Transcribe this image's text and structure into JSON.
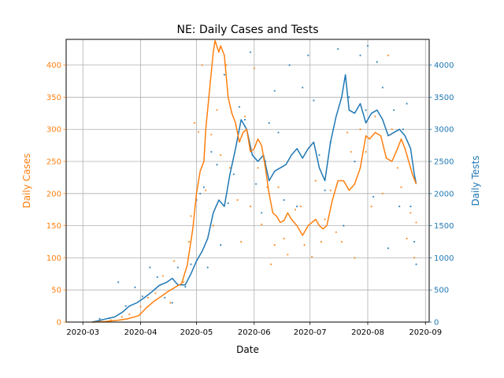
{
  "chart_data": {
    "type": "line",
    "title": "NE: Daily Cases and Tests",
    "xlabel": "Date",
    "ylabel_left": "Daily Cases",
    "ylabel_right": "Daily Tests",
    "x_ticks": [
      "2020-03",
      "2020-04",
      "2020-05",
      "2020-06",
      "2020-07",
      "2020-08",
      "2020-09"
    ],
    "x_tick_dates": [
      "2020-03-01",
      "2020-04-01",
      "2020-05-01",
      "2020-06-01",
      "2020-07-01",
      "2020-08-01",
      "2020-09-01"
    ],
    "x_range": [
      "2020-02-21",
      "2020-09-03"
    ],
    "ylim_left": [
      0,
      440
    ],
    "ylim_right": [
      0,
      4400
    ],
    "yticks_left": [
      0,
      50,
      100,
      150,
      200,
      250,
      300,
      350,
      400
    ],
    "yticks_right": [
      0,
      500,
      1000,
      1500,
      2000,
      2500,
      3000,
      3500,
      4000
    ],
    "grid": true,
    "colors": {
      "cases": "#ff7f0e",
      "tests": "#1f77b4"
    },
    "series": [
      {
        "axis": "left",
        "style": "line",
        "points": [
          [
            "2020-03-06",
            0
          ],
          [
            "2020-03-13",
            1
          ],
          [
            "2020-03-20",
            3
          ],
          [
            "2020-03-25",
            5
          ],
          [
            "2020-03-31",
            10
          ],
          [
            "2020-04-04",
            22
          ],
          [
            "2020-04-08",
            32
          ],
          [
            "2020-04-12",
            40
          ],
          [
            "2020-04-16",
            48
          ],
          [
            "2020-04-20",
            55
          ],
          [
            "2020-04-23",
            60
          ],
          [
            "2020-04-26",
            88
          ],
          [
            "2020-04-29",
            145
          ],
          [
            "2020-05-01",
            200
          ],
          [
            "2020-05-03",
            235
          ],
          [
            "2020-05-05",
            250
          ],
          [
            "2020-05-06",
            300
          ],
          [
            "2020-05-08",
            360
          ],
          [
            "2020-05-09",
            390
          ],
          [
            "2020-05-10",
            420
          ],
          [
            "2020-05-11",
            438
          ],
          [
            "2020-05-13",
            420
          ],
          [
            "2020-05-14",
            430
          ],
          [
            "2020-05-16",
            415
          ],
          [
            "2020-05-18",
            350
          ],
          [
            "2020-05-20",
            325
          ],
          [
            "2020-05-22",
            310
          ],
          [
            "2020-05-24",
            280
          ],
          [
            "2020-05-26",
            295
          ],
          [
            "2020-05-28",
            300
          ],
          [
            "2020-05-30",
            265
          ],
          [
            "2020-06-01",
            270
          ],
          [
            "2020-06-03",
            285
          ],
          [
            "2020-06-05",
            275
          ],
          [
            "2020-06-07",
            240
          ],
          [
            "2020-06-09",
            200
          ],
          [
            "2020-06-11",
            170
          ],
          [
            "2020-06-13",
            165
          ],
          [
            "2020-06-15",
            155
          ],
          [
            "2020-06-17",
            158
          ],
          [
            "2020-06-19",
            170
          ],
          [
            "2020-06-21",
            160
          ],
          [
            "2020-06-24",
            150
          ],
          [
            "2020-06-27",
            135
          ],
          [
            "2020-06-30",
            150
          ],
          [
            "2020-07-02",
            155
          ],
          [
            "2020-07-04",
            160
          ],
          [
            "2020-07-06",
            150
          ],
          [
            "2020-07-08",
            145
          ],
          [
            "2020-07-10",
            150
          ],
          [
            "2020-07-13",
            190
          ],
          [
            "2020-07-16",
            220
          ],
          [
            "2020-07-19",
            220
          ],
          [
            "2020-07-22",
            205
          ],
          [
            "2020-07-25",
            215
          ],
          [
            "2020-07-28",
            240
          ],
          [
            "2020-07-31",
            290
          ],
          [
            "2020-08-02",
            285
          ],
          [
            "2020-08-05",
            295
          ],
          [
            "2020-08-08",
            290
          ],
          [
            "2020-08-11",
            255
          ],
          [
            "2020-08-14",
            250
          ],
          [
            "2020-08-17",
            270
          ],
          [
            "2020-08-19",
            285
          ],
          [
            "2020-08-21",
            270
          ],
          [
            "2020-08-23",
            250
          ],
          [
            "2020-08-25",
            230
          ],
          [
            "2020-08-27",
            215
          ]
        ]
      },
      {
        "axis": "right",
        "style": "line",
        "points": [
          [
            "2020-03-06",
            0
          ],
          [
            "2020-03-12",
            40
          ],
          [
            "2020-03-18",
            80
          ],
          [
            "2020-03-22",
            150
          ],
          [
            "2020-03-26",
            250
          ],
          [
            "2020-03-30",
            300
          ],
          [
            "2020-04-03",
            380
          ],
          [
            "2020-04-07",
            470
          ],
          [
            "2020-04-11",
            570
          ],
          [
            "2020-04-15",
            620
          ],
          [
            "2020-04-18",
            680
          ],
          [
            "2020-04-21",
            580
          ],
          [
            "2020-04-25",
            580
          ],
          [
            "2020-04-28",
            750
          ],
          [
            "2020-05-01",
            950
          ],
          [
            "2020-05-04",
            1100
          ],
          [
            "2020-05-07",
            1300
          ],
          [
            "2020-05-10",
            1700
          ],
          [
            "2020-05-13",
            1900
          ],
          [
            "2020-05-16",
            1800
          ],
          [
            "2020-05-19",
            2300
          ],
          [
            "2020-05-22",
            2700
          ],
          [
            "2020-05-25",
            3150
          ],
          [
            "2020-05-28",
            3000
          ],
          [
            "2020-05-31",
            2600
          ],
          [
            "2020-06-03",
            2500
          ],
          [
            "2020-06-06",
            2600
          ],
          [
            "2020-06-09",
            2200
          ],
          [
            "2020-06-12",
            2350
          ],
          [
            "2020-06-15",
            2400
          ],
          [
            "2020-06-18",
            2450
          ],
          [
            "2020-06-21",
            2600
          ],
          [
            "2020-06-24",
            2700
          ],
          [
            "2020-06-27",
            2550
          ],
          [
            "2020-06-30",
            2700
          ],
          [
            "2020-07-03",
            2800
          ],
          [
            "2020-07-06",
            2400
          ],
          [
            "2020-07-09",
            2200
          ],
          [
            "2020-07-12",
            2800
          ],
          [
            "2020-07-15",
            3200
          ],
          [
            "2020-07-18",
            3500
          ],
          [
            "2020-07-20",
            3850
          ],
          [
            "2020-07-22",
            3300
          ],
          [
            "2020-07-25",
            3250
          ],
          [
            "2020-07-28",
            3400
          ],
          [
            "2020-07-31",
            3100
          ],
          [
            "2020-08-03",
            3250
          ],
          [
            "2020-08-06",
            3300
          ],
          [
            "2020-08-09",
            3150
          ],
          [
            "2020-08-12",
            2900
          ],
          [
            "2020-08-15",
            2950
          ],
          [
            "2020-08-18",
            3000
          ],
          [
            "2020-08-21",
            2900
          ],
          [
            "2020-08-24",
            2700
          ],
          [
            "2020-08-26",
            2300
          ],
          [
            "2020-08-27",
            2150
          ]
        ]
      },
      {
        "axis": "left",
        "style": "scatter",
        "points": [
          [
            "2020-03-10",
            1
          ],
          [
            "2020-03-16",
            3
          ],
          [
            "2020-03-22",
            8
          ],
          [
            "2020-03-26",
            12
          ],
          [
            "2020-04-01",
            24
          ],
          [
            "2020-04-05",
            38
          ],
          [
            "2020-04-09",
            45
          ],
          [
            "2020-04-13",
            72
          ],
          [
            "2020-04-17",
            30
          ],
          [
            "2020-04-19",
            95
          ],
          [
            "2020-04-24",
            62
          ],
          [
            "2020-04-27",
            125
          ],
          [
            "2020-04-28",
            165
          ],
          [
            "2020-04-30",
            310
          ],
          [
            "2020-05-02",
            296
          ],
          [
            "2020-05-04",
            400
          ],
          [
            "2020-05-06",
            205
          ],
          [
            "2020-05-09",
            292
          ],
          [
            "2020-05-10",
            150
          ],
          [
            "2020-05-12",
            330
          ],
          [
            "2020-05-14",
            260
          ],
          [
            "2020-05-17",
            400
          ],
          [
            "2020-05-19",
            240
          ],
          [
            "2020-05-23",
            190
          ],
          [
            "2020-05-25",
            125
          ],
          [
            "2020-05-27",
            320
          ],
          [
            "2020-05-30",
            180
          ],
          [
            "2020-06-01",
            395
          ],
          [
            "2020-06-03",
            240
          ],
          [
            "2020-06-05",
            152
          ],
          [
            "2020-06-08",
            210
          ],
          [
            "2020-06-10",
            90
          ],
          [
            "2020-06-12",
            120
          ],
          [
            "2020-06-14",
            210
          ],
          [
            "2020-06-17",
            130
          ],
          [
            "2020-06-19",
            105
          ],
          [
            "2020-06-23",
            175
          ],
          [
            "2020-06-26",
            180
          ],
          [
            "2020-06-28",
            120
          ],
          [
            "2020-07-02",
            102
          ],
          [
            "2020-07-04",
            220
          ],
          [
            "2020-07-07",
            125
          ],
          [
            "2020-07-09",
            160
          ],
          [
            "2020-07-12",
            205
          ],
          [
            "2020-07-15",
            140
          ],
          [
            "2020-07-18",
            125
          ],
          [
            "2020-07-21",
            295
          ],
          [
            "2020-07-23",
            265
          ],
          [
            "2020-07-25",
            100
          ],
          [
            "2020-07-28",
            300
          ],
          [
            "2020-07-31",
            265
          ],
          [
            "2020-08-03",
            180
          ],
          [
            "2020-08-05",
            320
          ],
          [
            "2020-08-09",
            200
          ],
          [
            "2020-08-12",
            415
          ],
          [
            "2020-08-14",
            300
          ],
          [
            "2020-08-17",
            240
          ],
          [
            "2020-08-19",
            210
          ],
          [
            "2020-08-22",
            130
          ],
          [
            "2020-08-24",
            170
          ],
          [
            "2020-08-26",
            100
          ],
          [
            "2020-08-27",
            155
          ]
        ]
      },
      {
        "axis": "right",
        "style": "scatter",
        "points": [
          [
            "2020-03-10",
            50
          ],
          [
            "2020-03-15",
            60
          ],
          [
            "2020-03-20",
            620
          ],
          [
            "2020-03-24",
            250
          ],
          [
            "2020-03-29",
            540
          ],
          [
            "2020-04-02",
            400
          ],
          [
            "2020-04-06",
            850
          ],
          [
            "2020-04-10",
            700
          ],
          [
            "2020-04-14",
            380
          ],
          [
            "2020-04-18",
            300
          ],
          [
            "2020-04-21",
            850
          ],
          [
            "2020-04-25",
            550
          ],
          [
            "2020-04-28",
            900
          ],
          [
            "2020-05-01",
            1900
          ],
          [
            "2020-05-03",
            2000
          ],
          [
            "2020-05-05",
            2100
          ],
          [
            "2020-05-07",
            850
          ],
          [
            "2020-05-09",
            2650
          ],
          [
            "2020-05-12",
            2450
          ],
          [
            "2020-05-14",
            1200
          ],
          [
            "2020-05-16",
            3850
          ],
          [
            "2020-05-18",
            1850
          ],
          [
            "2020-05-21",
            2300
          ],
          [
            "2020-05-24",
            3350
          ],
          [
            "2020-05-27",
            3150
          ],
          [
            "2020-05-30",
            4200
          ],
          [
            "2020-06-02",
            2150
          ],
          [
            "2020-06-05",
            1700
          ],
          [
            "2020-06-07",
            2500
          ],
          [
            "2020-06-09",
            3100
          ],
          [
            "2020-06-12",
            3600
          ],
          [
            "2020-06-14",
            2950
          ],
          [
            "2020-06-17",
            1900
          ],
          [
            "2020-06-20",
            4000
          ],
          [
            "2020-06-24",
            1800
          ],
          [
            "2020-06-27",
            3650
          ],
          [
            "2020-06-30",
            4150
          ],
          [
            "2020-07-03",
            3450
          ],
          [
            "2020-07-06",
            2600
          ],
          [
            "2020-07-09",
            2050
          ],
          [
            "2020-07-12",
            2800
          ],
          [
            "2020-07-16",
            4250
          ],
          [
            "2020-07-19",
            1500
          ],
          [
            "2020-07-22",
            3500
          ],
          [
            "2020-07-25",
            2500
          ],
          [
            "2020-07-28",
            4150
          ],
          [
            "2020-07-31",
            3300
          ],
          [
            "2020-08-01",
            4300
          ],
          [
            "2020-08-04",
            1950
          ],
          [
            "2020-08-06",
            4050
          ],
          [
            "2020-08-09",
            3650
          ],
          [
            "2020-08-12",
            1150
          ],
          [
            "2020-08-15",
            3300
          ],
          [
            "2020-08-18",
            1800
          ],
          [
            "2020-08-20",
            3000
          ],
          [
            "2020-08-22",
            3400
          ],
          [
            "2020-08-24",
            1800
          ],
          [
            "2020-08-26",
            1250
          ],
          [
            "2020-08-27",
            900
          ]
        ]
      }
    ]
  }
}
